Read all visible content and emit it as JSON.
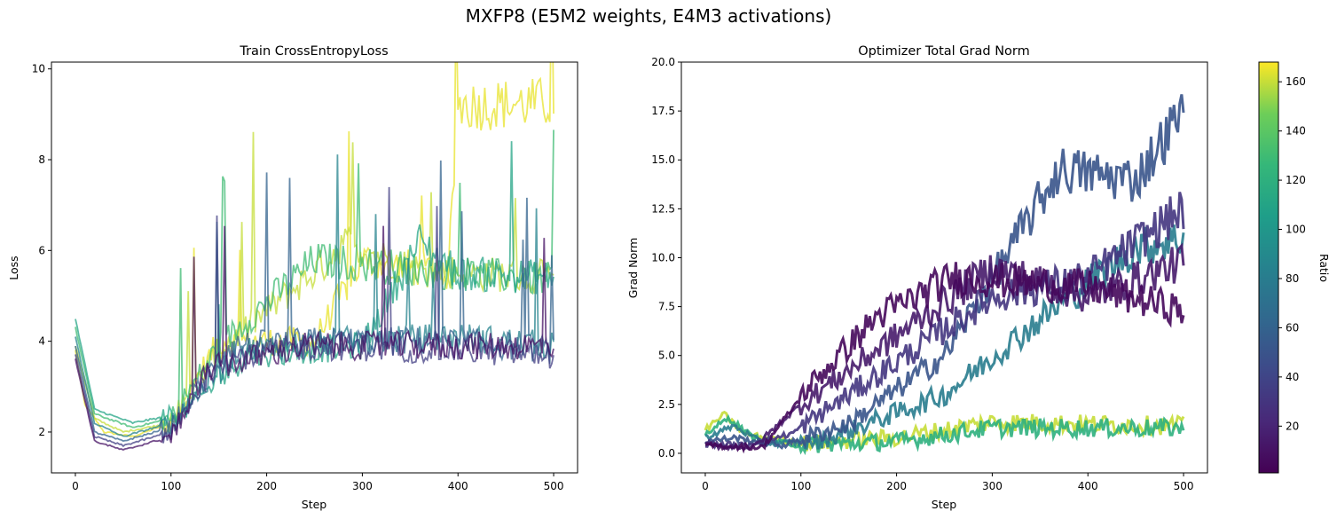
{
  "figure": {
    "title": "MXFP8 (E5M2 weights, E4M3 activations)"
  },
  "colorbar": {
    "label": "Ratio",
    "colormap": "viridis",
    "range": [
      1,
      168
    ],
    "ticks": [
      20,
      40,
      60,
      80,
      100,
      120,
      140,
      160
    ]
  },
  "chart_data": [
    {
      "type": "line",
      "title": "Train CrossEntropyLoss",
      "xlabel": "Step",
      "ylabel": "Loss",
      "xlim": [
        -25,
        525
      ],
      "ylim": [
        1.1,
        10.15
      ],
      "xticks": [
        0,
        100,
        200,
        300,
        400,
        500
      ],
      "yticks": [
        2,
        4,
        6,
        8,
        10
      ],
      "grid": false,
      "series_note": "many overlaid runs colored by Ratio (viridis)",
      "series": [
        {
          "ratio": 165,
          "values": [
            [
              0,
              3.8
            ],
            [
              10,
              2.6
            ],
            [
              30,
              2.0
            ],
            [
              60,
              1.9
            ],
            [
              100,
              2.2
            ],
            [
              150,
              4.0
            ],
            [
              250,
              4.0
            ],
            [
              300,
              5.8
            ],
            [
              390,
              5.5
            ],
            [
              400,
              9.2
            ],
            [
              500,
              9.25
            ]
          ]
        },
        {
          "ratio": 160,
          "values": [
            [
              0,
              3.9
            ],
            [
              20,
              2.3
            ],
            [
              50,
              2.0
            ],
            [
              100,
              2.2
            ],
            [
              150,
              3.8
            ],
            [
              260,
              5.7
            ],
            [
              280,
              6.2
            ],
            [
              350,
              5.6
            ],
            [
              420,
              5.5
            ],
            [
              500,
              5.4
            ]
          ]
        },
        {
          "ratio": 130,
          "values": [
            [
              0,
              4.3
            ],
            [
              20,
              2.4
            ],
            [
              60,
              2.1
            ],
            [
              100,
              2.3
            ],
            [
              150,
              3.9
            ],
            [
              250,
              5.8
            ],
            [
              300,
              5.7
            ],
            [
              400,
              5.5
            ],
            [
              500,
              5.35
            ]
          ]
        },
        {
          "ratio": 110,
          "values": [
            [
              0,
              4.5
            ],
            [
              20,
              2.5
            ],
            [
              60,
              2.2
            ],
            [
              110,
              2.4
            ],
            [
              180,
              3.7
            ],
            [
              300,
              3.9
            ],
            [
              360,
              6.2
            ],
            [
              400,
              5.5
            ],
            [
              500,
              5.4
            ]
          ]
        },
        {
          "ratio": 85,
          "values": [
            [
              0,
              4.1
            ],
            [
              20,
              2.2
            ],
            [
              50,
              1.9
            ],
            [
              100,
              2.2
            ],
            [
              170,
              3.8
            ],
            [
              280,
              4.0
            ],
            [
              400,
              4.1
            ],
            [
              500,
              3.9
            ]
          ]
        },
        {
          "ratio": 60,
          "values": [
            [
              0,
              3.9
            ],
            [
              20,
              2.0
            ],
            [
              50,
              1.8
            ],
            [
              100,
              2.1
            ],
            [
              160,
              3.9
            ],
            [
              260,
              4.0
            ],
            [
              400,
              4.0
            ],
            [
              500,
              3.8
            ]
          ]
        },
        {
          "ratio": 35,
          "values": [
            [
              0,
              3.7
            ],
            [
              20,
              1.9
            ],
            [
              50,
              1.7
            ],
            [
              100,
              2.0
            ],
            [
              150,
              3.6
            ],
            [
              250,
              3.9
            ],
            [
              400,
              3.8
            ],
            [
              500,
              3.7
            ]
          ]
        },
        {
          "ratio": 10,
          "values": [
            [
              0,
              3.6
            ],
            [
              20,
              1.8
            ],
            [
              50,
              1.6
            ],
            [
              100,
              1.9
            ],
            [
              140,
              3.4
            ],
            [
              240,
              3.9
            ],
            [
              400,
              3.9
            ],
            [
              500,
              3.9
            ]
          ]
        }
      ]
    },
    {
      "type": "line",
      "title": "Optimizer Total Grad Norm",
      "xlabel": "Step",
      "ylabel": "Grad Norm",
      "xlim": [
        -25,
        525
      ],
      "ylim": [
        -1,
        20
      ],
      "xticks": [
        0,
        100,
        200,
        300,
        400,
        500
      ],
      "yticks": [
        0.0,
        2.5,
        5.0,
        7.5,
        10.0,
        12.5,
        15.0,
        17.5,
        20.0
      ],
      "grid": false,
      "series_note": "raw runs (faint) plus smoothed runs (thick), colored by Ratio",
      "series": [
        {
          "ratio": 160,
          "values": [
            [
              0,
              1.2
            ],
            [
              20,
              2.0
            ],
            [
              40,
              1.0
            ],
            [
              100,
              0.5
            ],
            [
              200,
              0.8
            ],
            [
              300,
              1.6
            ],
            [
              400,
              1.5
            ],
            [
              500,
              1.4
            ]
          ]
        },
        {
          "ratio": 120,
          "values": [
            [
              0,
              1.0
            ],
            [
              25,
              1.8
            ],
            [
              50,
              0.8
            ],
            [
              100,
              0.4
            ],
            [
              200,
              0.6
            ],
            [
              300,
              1.3
            ],
            [
              400,
              1.3
            ],
            [
              500,
              1.3
            ]
          ]
        },
        {
          "ratio": 80,
          "values": [
            [
              0,
              0.8
            ],
            [
              30,
              1.4
            ],
            [
              60,
              0.5
            ],
            [
              120,
              0.6
            ],
            [
              250,
              3.0
            ],
            [
              380,
              8.0
            ],
            [
              450,
              10.5
            ],
            [
              500,
              11.0
            ]
          ]
        },
        {
          "ratio": 50,
          "values": [
            [
              0,
              0.6
            ],
            [
              30,
              0.8
            ],
            [
              80,
              0.4
            ],
            [
              150,
              1.5
            ],
            [
              250,
              5.0
            ],
            [
              370,
              14.5
            ],
            [
              450,
              14.0
            ],
            [
              500,
              17.5
            ]
          ]
        },
        {
          "ratio": 30,
          "values": [
            [
              0,
              0.5
            ],
            [
              40,
              0.4
            ],
            [
              90,
              1.0
            ],
            [
              180,
              4.0
            ],
            [
              300,
              8.0
            ],
            [
              400,
              9.0
            ],
            [
              500,
              12.5
            ]
          ]
        },
        {
          "ratio": 15,
          "values": [
            [
              0,
              0.4
            ],
            [
              50,
              0.3
            ],
            [
              100,
              2.5
            ],
            [
              200,
              6.0
            ],
            [
              300,
              9.5
            ],
            [
              400,
              8.0
            ],
            [
              500,
              9.8
            ]
          ]
        },
        {
          "ratio": 5,
          "values": [
            [
              0,
              0.4
            ],
            [
              60,
              0.3
            ],
            [
              110,
              3.5
            ],
            [
              180,
              7.0
            ],
            [
              260,
              9.0
            ],
            [
              400,
              8.5
            ],
            [
              500,
              7.3
            ]
          ]
        }
      ]
    }
  ]
}
